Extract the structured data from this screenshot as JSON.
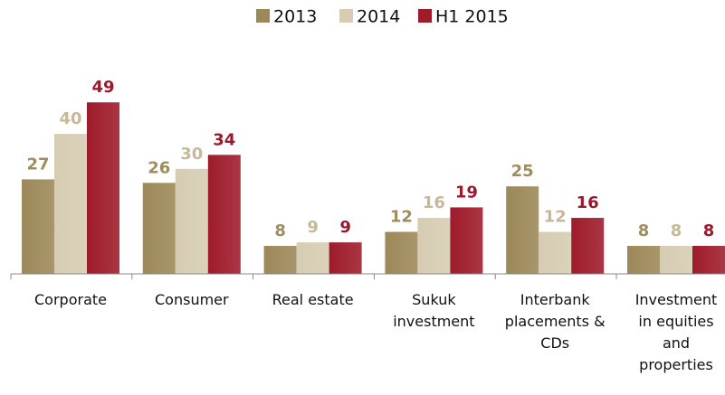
{
  "chart_data": {
    "type": "bar",
    "categories": [
      "Corporate",
      "Consumer",
      "Real estate",
      "Sukuk investment",
      "Interbank placements & CDs",
      "Investment in equities and properties"
    ],
    "series": [
      {
        "name": "2013",
        "color": "#9c8858",
        "label_color": "#a08d5d",
        "values": [
          27,
          26,
          8,
          12,
          25,
          8
        ]
      },
      {
        "name": "2014",
        "color": "#d6ccb2",
        "label_color": "#c7b89a",
        "values": [
          40,
          30,
          9,
          16,
          12,
          8
        ]
      },
      {
        "name": "H1 2015",
        "color": "#9e1b2a",
        "label_color": "#9a1a2c",
        "values": [
          49,
          34,
          9,
          19,
          16,
          8
        ]
      }
    ],
    "ylim": [
      0,
      55
    ],
    "legend": "top"
  }
}
